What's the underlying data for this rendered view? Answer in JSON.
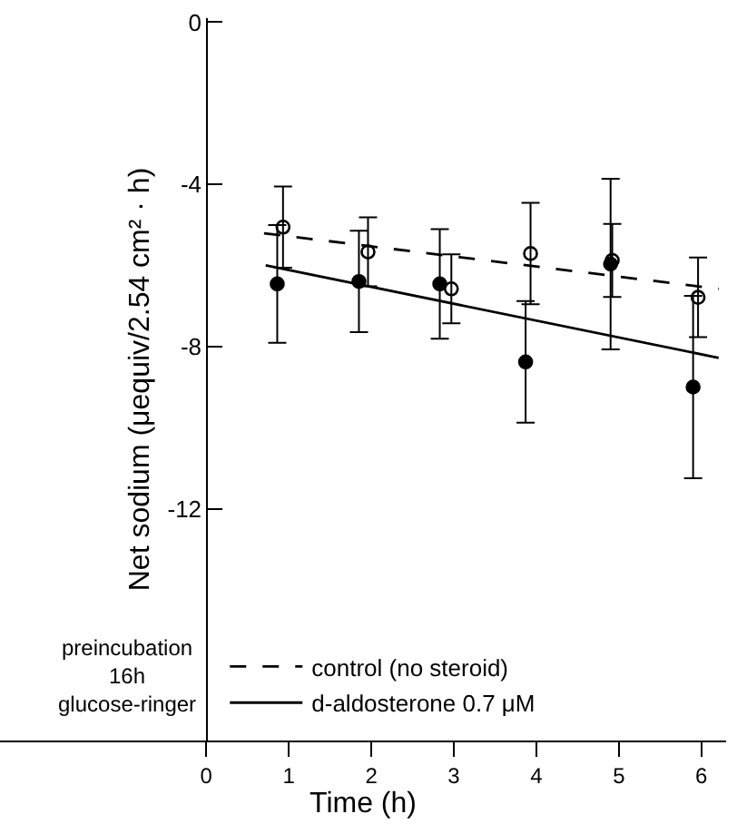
{
  "chart_data": {
    "type": "scatter",
    "xlabel": "Time (h)",
    "ylabel": "Net sodium (μequiv/2.54 cm² · h)",
    "xlim": [
      -2.5,
      6.3
    ],
    "xticks": [
      0,
      1,
      2,
      3,
      4,
      5,
      6
    ],
    "ylim": [
      -17.7,
      0.1
    ],
    "yticks": [
      0,
      -4,
      -8,
      -12
    ],
    "legend": "bottom",
    "annotations": [
      "preincubation\n16h\nglucose-ringer"
    ],
    "series": [
      {
        "marker": "circle",
        "color": "#000000",
        "x": [
          0.86,
          1.85,
          2.83,
          3.87,
          4.9,
          5.9
        ],
        "values": [
          -6.45,
          -6.39,
          -6.45,
          -8.37,
          -5.96,
          -8.99
        ],
        "errors": [
          1.45,
          1.25,
          1.35,
          1.5,
          2.1,
          2.25
        ]
      },
      {
        "marker": "circle-open",
        "color": "#000000",
        "x": [
          0.93,
          1.96,
          2.97,
          3.93,
          4.92,
          5.96
        ],
        "values": [
          -5.05,
          -5.66,
          -6.57,
          -5.7,
          -5.87,
          -6.78
        ],
        "errors": [
          1.0,
          0.85,
          0.85,
          1.25,
          0.9,
          0.98
        ]
      },
      {
        "type": "line",
        "name": "control (no steroid)",
        "line_style": "dashed",
        "color": "#000000",
        "x": [
          0.7,
          6.21
        ],
        "values": [
          -5.2,
          -6.57
        ]
      },
      {
        "type": "line",
        "name": "d-aldosterone 0.7 μM",
        "line_style": "solid",
        "color": "#000000",
        "x": [
          0.72,
          6.21
        ],
        "values": [
          -5.99,
          -8.27
        ]
      }
    ]
  }
}
